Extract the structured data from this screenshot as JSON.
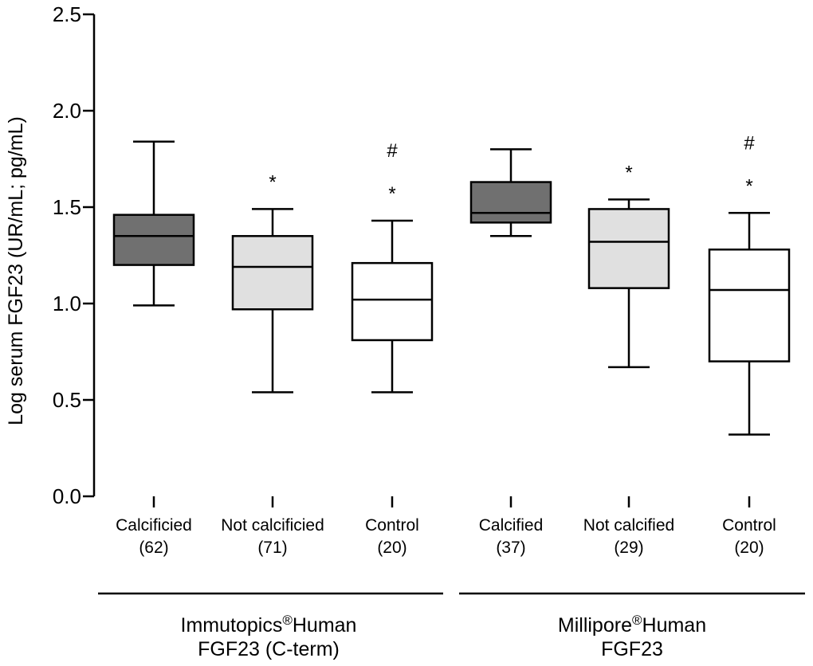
{
  "chart_data": {
    "type": "boxplot",
    "ylabel": "Log serum FGF23 (UR/mL; pg/mL)",
    "ylim": [
      0.0,
      2.5
    ],
    "yticks": [
      "0.0",
      "0.5",
      "1.0",
      "1.5",
      "2.0",
      "2.5"
    ],
    "ytick_values": [
      0.0,
      0.5,
      1.0,
      1.5,
      2.0,
      2.5
    ],
    "colors": {
      "calcified": "#707070",
      "not_calcified": "#e0e0e0",
      "control": "#ffffff",
      "line": "#000000"
    },
    "groups": [
      {
        "name_line1_prefix": "Immutopics",
        "registered": "®",
        "name_line1_suffix": "Human",
        "name_line2": "FGF23 (C-term)",
        "boxes": [
          {
            "label": "Calcificied",
            "n": "(62)",
            "fill": "calcified",
            "min": 0.99,
            "q1": 1.2,
            "median": 1.35,
            "q3": 1.46,
            "max": 1.84,
            "star": "",
            "hash": ""
          },
          {
            "label": "Not calcificied",
            "n": "(71)",
            "fill": "not_calcified",
            "min": 0.54,
            "q1": 0.97,
            "median": 1.19,
            "q3": 1.35,
            "max": 1.49,
            "star": "*",
            "hash": ""
          },
          {
            "label": "Control",
            "n": "(20)",
            "fill": "control",
            "min": 0.54,
            "q1": 0.81,
            "median": 1.02,
            "q3": 1.21,
            "max": 1.43,
            "star": "*",
            "hash": "#"
          }
        ]
      },
      {
        "name_line1_prefix": "Millipore",
        "registered": "®",
        "name_line1_suffix": "Human",
        "name_line2": "FGF23",
        "boxes": [
          {
            "label": "Calcified",
            "n": "(37)",
            "fill": "calcified",
            "min": 1.35,
            "q1": 1.42,
            "median": 1.47,
            "q3": 1.63,
            "max": 1.8,
            "star": "",
            "hash": ""
          },
          {
            "label": "Not calcified",
            "n": "(29)",
            "fill": "not_calcified",
            "min": 0.67,
            "q1": 1.08,
            "median": 1.32,
            "q3": 1.49,
            "max": 1.54,
            "star": "*",
            "hash": ""
          },
          {
            "label": "Control",
            "n": "(20)",
            "fill": "control",
            "min": 0.32,
            "q1": 0.7,
            "median": 1.07,
            "q3": 1.28,
            "max": 1.47,
            "star": "*",
            "hash": "#"
          }
        ]
      }
    ]
  }
}
